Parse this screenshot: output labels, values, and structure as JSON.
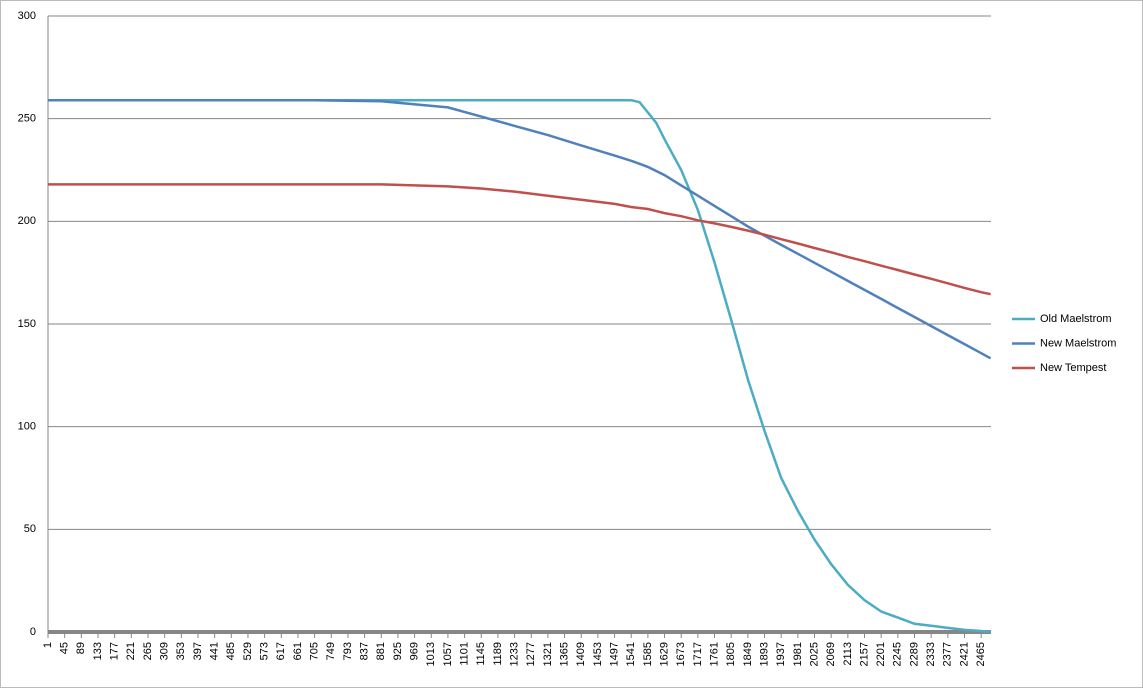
{
  "chart_data": {
    "type": "line",
    "x": [
      1,
      177,
      353,
      529,
      705,
      881,
      1057,
      1145,
      1233,
      1321,
      1409,
      1497,
      1541,
      1563,
      1585,
      1607,
      1629,
      1673,
      1717,
      1761,
      1805,
      1849,
      1893,
      1937,
      1981,
      2025,
      2069,
      2113,
      2157,
      2201,
      2245,
      2289,
      2333,
      2377,
      2421,
      2465,
      2490
    ],
    "series": [
      {
        "name": "Old Maelstrom",
        "color": "#4bacc6",
        "values": [
          259,
          259,
          259,
          259,
          259,
          259,
          259,
          259,
          259,
          259,
          259,
          259,
          259,
          258,
          253,
          248,
          240,
          225,
          205.5,
          180,
          152,
          123,
          98,
          75,
          59,
          45,
          33,
          23,
          15.5,
          10,
          7,
          4,
          3,
          2,
          1,
          0.5,
          0
        ]
      },
      {
        "name": "New Maelstrom",
        "color": "#4f81bd",
        "values": [
          259,
          259,
          259,
          259,
          259,
          258.5,
          255.5,
          251,
          246.5,
          242,
          237,
          232,
          229.5,
          228,
          226.5,
          224.5,
          222.5,
          217.5,
          212.5,
          207.5,
          202.5,
          197.5,
          193,
          188.5,
          184.2,
          179.8,
          175.4,
          171,
          166.6,
          162.2,
          157.8,
          153.4,
          149,
          144.6,
          140.2,
          135.8,
          133.3
        ]
      },
      {
        "name": "New Tempest",
        "color": "#c0504d",
        "values": [
          218,
          218,
          218,
          218,
          218,
          218,
          217,
          216,
          214.5,
          212.5,
          210.5,
          208.5,
          207,
          206.5,
          206,
          205,
          204,
          202.5,
          200.5,
          199,
          197.3,
          195.5,
          193.5,
          191.3,
          189.2,
          187,
          184.9,
          182.7,
          180.6,
          178.4,
          176.3,
          174.1,
          172,
          169.8,
          167.6,
          165.5,
          164.5
        ]
      }
    ],
    "xlim": [
      1,
      2491
    ],
    "xticks": [
      1,
      45,
      89,
      133,
      177,
      221,
      265,
      309,
      353,
      397,
      441,
      485,
      529,
      573,
      617,
      661,
      705,
      749,
      793,
      837,
      881,
      925,
      969,
      1013,
      1057,
      1101,
      1145,
      1189,
      1233,
      1277,
      1321,
      1365,
      1409,
      1453,
      1497,
      1541,
      1585,
      1629,
      1673,
      1717,
      1761,
      1805,
      1849,
      1893,
      1937,
      1981,
      2025,
      2069,
      2113,
      2157,
      2201,
      2245,
      2289,
      2333,
      2377,
      2421,
      2465
    ],
    "ylim": [
      0,
      300
    ],
    "yticks": [
      0,
      50,
      100,
      150,
      200,
      250,
      300
    ],
    "grid": true,
    "legend": "right"
  }
}
